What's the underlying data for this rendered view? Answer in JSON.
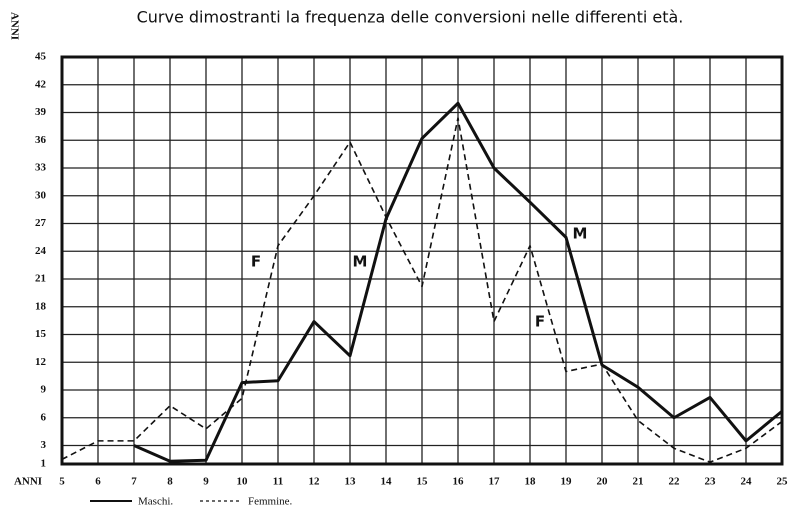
{
  "chart_data": {
    "type": "line",
    "title": "Curve dimostranti la frequenza delle conversioni nelle differenti età.",
    "y_label": "ANNI",
    "x_label": "ANNI",
    "x": [
      5,
      6,
      7,
      8,
      9,
      10,
      11,
      12,
      13,
      14,
      15,
      16,
      17,
      18,
      19,
      20,
      21,
      22,
      23,
      24,
      25
    ],
    "xlim": [
      5,
      25
    ],
    "xticks": [
      5,
      6,
      7,
      8,
      9,
      10,
      11,
      12,
      13,
      14,
      15,
      16,
      17,
      18,
      19,
      20,
      21,
      22,
      23,
      24,
      25
    ],
    "ylim": [
      1,
      45
    ],
    "yticks": [
      1,
      3,
      6,
      9,
      12,
      15,
      18,
      21,
      24,
      27,
      30,
      33,
      36,
      39,
      42,
      45
    ],
    "grid": true,
    "series": [
      {
        "name": "Maschi.",
        "color": "#111111",
        "style": "solid",
        "values": [
          null,
          null,
          3,
          1.3,
          1.4,
          9.8,
          10,
          16.4,
          12.7,
          27.5,
          36.2,
          40,
          33,
          29.3,
          25.5,
          11.7,
          9.3,
          6,
          8.2,
          3.5,
          6.7
        ]
      },
      {
        "name": "Femmine.",
        "color": "#111111",
        "style": "dashed",
        "values": [
          1.5,
          3.5,
          3.5,
          7.3,
          4.8,
          8.1,
          24.6,
          30,
          35.8,
          27.7,
          20.2,
          38.4,
          16.4,
          24.6,
          11,
          11.8,
          5.7,
          2.7,
          1.2,
          2.7,
          5.6
        ]
      }
    ],
    "annotations": [
      "F",
      "M",
      "M",
      "F"
    ]
  }
}
